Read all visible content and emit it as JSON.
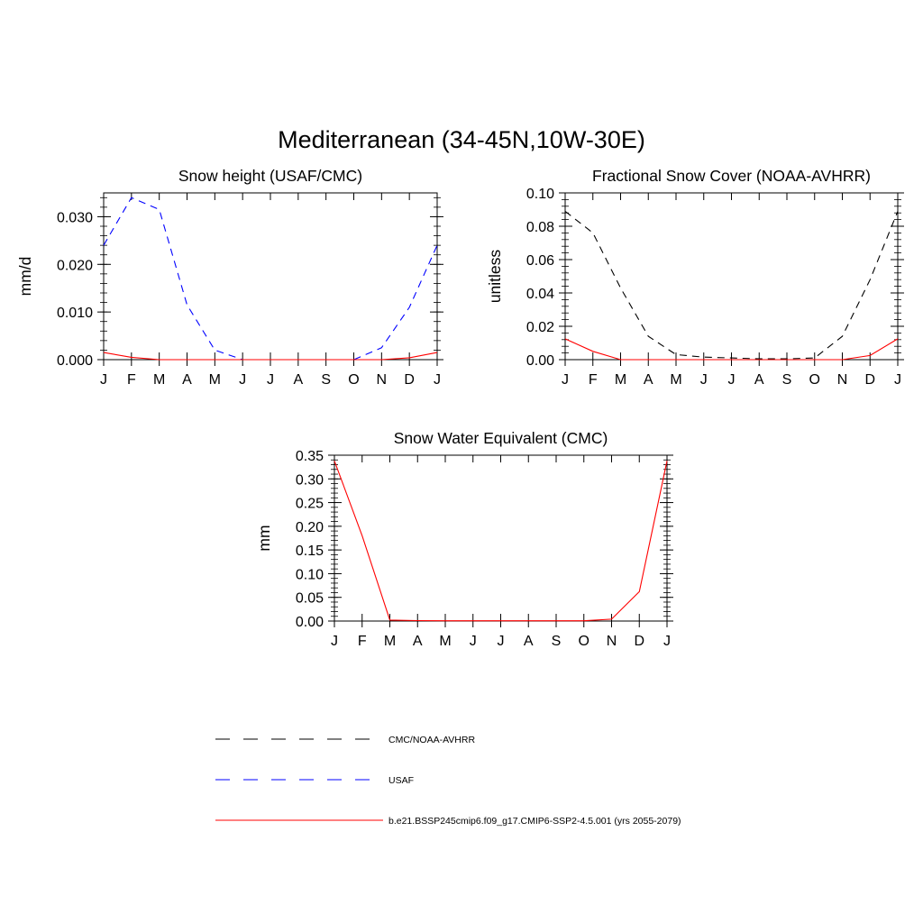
{
  "figure": {
    "title": "Mediterranean (34-45N,10W-30E)"
  },
  "chart_data": [
    {
      "type": "line",
      "title": "Snow height (USAF/CMC)",
      "xlabel": "",
      "ylabel": "mm/d",
      "categories": [
        "J",
        "F",
        "M",
        "A",
        "M",
        "J",
        "J",
        "A",
        "S",
        "O",
        "N",
        "D",
        "J"
      ],
      "ylim": [
        0,
        0.035
      ],
      "yticks": [
        0,
        0.01,
        0.02,
        0.03
      ],
      "ytick_labels": [
        "0.000",
        "0.010",
        "0.020",
        "0.030"
      ],
      "grid": false,
      "series": [
        {
          "name": "USAF",
          "color": "#0000ff",
          "dash": "dashed",
          "values": [
            0.024,
            0.034,
            0.0315,
            0.0115,
            0.002,
            0.0,
            0.0,
            0.0,
            0.0,
            0.0,
            0.0025,
            0.011,
            0.024
          ]
        },
        {
          "name": "b.e21.BSSP245cmip6.f09_g17.CMIP6-SSP2-4.5.001 (yrs 2055-2079)",
          "color": "#ff0000",
          "dash": "solid",
          "values": [
            0.0015,
            0.0005,
            0.0,
            0.0,
            0.0,
            0.0,
            0.0,
            0.0,
            0.0,
            0.0,
            0.0,
            0.0004,
            0.0015
          ]
        }
      ]
    },
    {
      "type": "line",
      "title": "Fractional Snow Cover (NOAA-AVHRR)",
      "xlabel": "",
      "ylabel": "unitless",
      "categories": [
        "J",
        "F",
        "M",
        "A",
        "M",
        "J",
        "J",
        "A",
        "S",
        "O",
        "N",
        "D",
        "J"
      ],
      "ylim": [
        0,
        0.1
      ],
      "yticks": [
        0,
        0.02,
        0.04,
        0.06,
        0.08,
        0.1
      ],
      "ytick_labels": [
        "0.00",
        "0.02",
        "0.04",
        "0.06",
        "0.08",
        "0.10"
      ],
      "grid": false,
      "series": [
        {
          "name": "CMC/NOAA-AVHRR",
          "color": "#000000",
          "dash": "dashed",
          "values": [
            0.089,
            0.076,
            0.043,
            0.014,
            0.003,
            0.0015,
            0.001,
            0.0005,
            0.0005,
            0.001,
            0.014,
            0.048,
            0.089
          ]
        },
        {
          "name": "b.e21.BSSP245cmip6.f09_g17.CMIP6-SSP2-4.5.001 (yrs 2055-2079)",
          "color": "#ff0000",
          "dash": "solid",
          "values": [
            0.0125,
            0.005,
            0.0,
            0.0,
            0.0,
            0.0,
            0.0,
            0.0,
            0.0,
            0.0,
            0.0,
            0.0025,
            0.0125
          ]
        }
      ]
    },
    {
      "type": "line",
      "title": "Snow Water Equivalent (CMC)",
      "xlabel": "",
      "ylabel": "mm",
      "categories": [
        "J",
        "F",
        "M",
        "A",
        "M",
        "J",
        "J",
        "A",
        "S",
        "O",
        "N",
        "D",
        "J"
      ],
      "ylim": [
        0,
        0.35
      ],
      "yticks": [
        0,
        0.05,
        0.1,
        0.15,
        0.2,
        0.25,
        0.3,
        0.35
      ],
      "ytick_labels": [
        "0.00",
        "0.05",
        "0.10",
        "0.15",
        "0.20",
        "0.25",
        "0.30",
        "0.35"
      ],
      "grid": false,
      "series": [
        {
          "name": "CMC/NOAA-AVHRR",
          "color": "#000000",
          "dash": "dashed",
          "values": [
            0.0,
            0.0,
            0.0,
            0.0,
            0.0,
            0.0,
            0.0,
            0.0,
            0.0,
            0.0,
            0.0,
            0.0,
            0.0
          ]
        },
        {
          "name": "b.e21.BSSP245cmip6.f09_g17.CMIP6-SSP2-4.5.001 (yrs 2055-2079)",
          "color": "#ff0000",
          "dash": "solid",
          "values": [
            0.338,
            0.18,
            0.002,
            0.001,
            0.0005,
            0.0005,
            0.0005,
            0.0005,
            0.0005,
            0.0005,
            0.004,
            0.062,
            0.338
          ]
        }
      ]
    }
  ],
  "legend": {
    "placement": "bottom",
    "items": [
      {
        "label": "CMC/NOAA-AVHRR",
        "color": "#000000",
        "dash": "dashed"
      },
      {
        "label": "USAF",
        "color": "#0000ff",
        "dash": "dashed"
      },
      {
        "label": "b.e21.BSSP245cmip6.f09_g17.CMIP6-SSP2-4.5.001 (yrs 2055-2079)",
        "color": "#ff0000",
        "dash": "solid"
      }
    ]
  }
}
